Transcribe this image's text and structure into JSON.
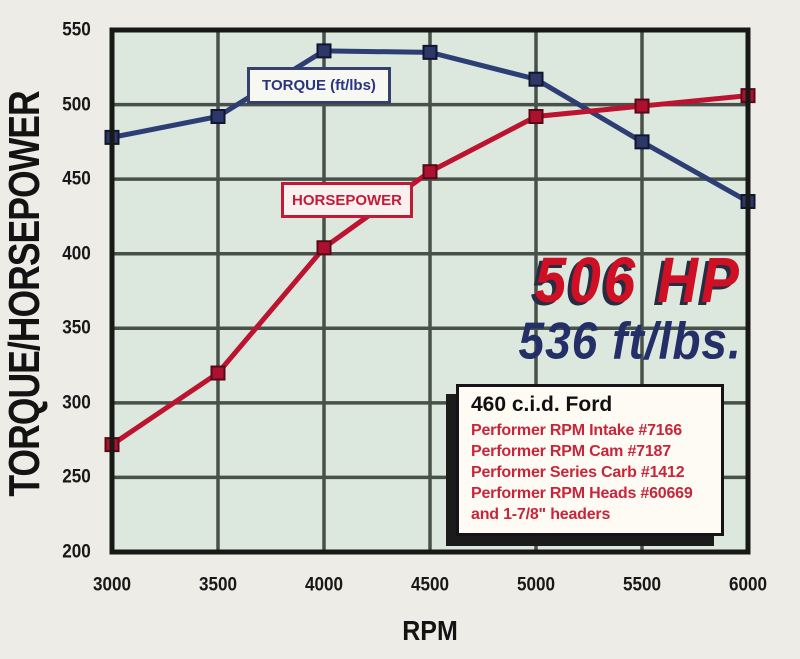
{
  "chart_data": {
    "type": "line",
    "x": [
      3000,
      3500,
      4000,
      4500,
      5000,
      5500,
      6000
    ],
    "x_tick_labels": [
      "3000",
      "3500",
      "4000",
      "4500",
      "5000",
      "5500",
      "6000"
    ],
    "y_tick_labels": [
      "550",
      "500",
      "450",
      "400",
      "350",
      "300",
      "250",
      "200"
    ],
    "series": [
      {
        "name": "TORQUE (ft/lbs)",
        "values": [
          478,
          492,
          536,
          535,
          517,
          475,
          435
        ],
        "color": "#2c3e74",
        "marker_fill": "#2d3869",
        "marker_edge": "#10162e"
      },
      {
        "name": "HORSEPOWER",
        "values": [
          272,
          320,
          404,
          455,
          492,
          499,
          506
        ],
        "color": "#bc1330",
        "marker_fill": "#ae1130",
        "marker_edge": "#570a16"
      }
    ],
    "xlabel": "RPM",
    "ylabel": "TORQUE/HORSEPOWER",
    "ylim": [
      200,
      550
    ],
    "ytick_step": 50,
    "xlim": [
      3000,
      6000
    ],
    "grid": true,
    "legend_position": "inside-plot"
  },
  "legend": {
    "torque_label": "TORQUE (ft/lbs)",
    "horsepower_label": "HORSEPOWER"
  },
  "callout": {
    "hp": "506 HP",
    "torque": "536 ft/lbs."
  },
  "info_box": {
    "title": "460 c.i.d. Ford",
    "lines": [
      "Performer RPM Intake #7166",
      "Performer RPM Cam #7187",
      "Performer Series Carb #1412",
      "Performer RPM Heads #60669",
      "and 1-7/8\" headers"
    ]
  },
  "colors": {
    "background": "#eeece6",
    "plot_background": "#dce7dd",
    "gridline": "#47514a",
    "plot_border": "#161916",
    "torque_line": "#2c3e74",
    "horsepower_line": "#bc1330",
    "callout_hp_red": "#ce0f24",
    "callout_torque_navy": "#232f66",
    "info_text_red": "#c9253a"
  }
}
